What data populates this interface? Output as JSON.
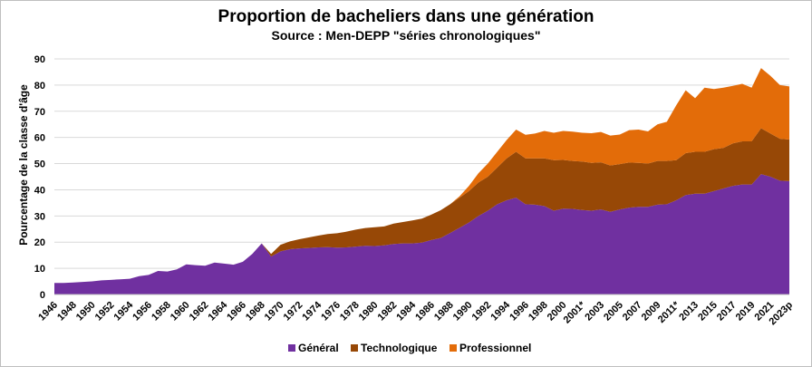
{
  "chart_data": {
    "type": "area",
    "stacked": true,
    "title": "Proportion de bacheliers dans une génération",
    "subtitle": "Source : Men-DEPP \"séries chronologiques\"",
    "ylabel": "Pourcentage de la classe d'âge",
    "ylim": [
      0,
      90
    ],
    "yticks": [
      0,
      10,
      20,
      30,
      40,
      50,
      60,
      70,
      80,
      90
    ],
    "grid": "horizontal",
    "legend_position": "bottom",
    "x_tick_labels": [
      "1946",
      "1948",
      "1950",
      "1952",
      "1954",
      "1956",
      "1958",
      "1960",
      "1962",
      "1964",
      "1966",
      "1968",
      "1970",
      "1972",
      "1974",
      "1976",
      "1978",
      "1980",
      "1982",
      "1984",
      "1986",
      "1988",
      "1990",
      "1992",
      "1994",
      "1996",
      "1998",
      "2000",
      "2001*",
      "2003",
      "2005",
      "2007",
      "2009",
      "2011*",
      "2013",
      "2015",
      "2017",
      "2019",
      "2021",
      "2023p"
    ],
    "x": [
      "1946",
      "1947",
      "1948",
      "1949",
      "1950",
      "1951",
      "1952",
      "1953",
      "1954",
      "1955",
      "1956",
      "1957",
      "1958",
      "1959",
      "1960",
      "1961",
      "1962",
      "1963",
      "1964",
      "1965",
      "1966",
      "1967",
      "1968",
      "1969",
      "1970",
      "1971",
      "1972",
      "1973",
      "1974",
      "1975",
      "1976",
      "1977",
      "1978",
      "1979",
      "1980",
      "1981",
      "1982",
      "1983",
      "1984",
      "1985",
      "1986",
      "1987",
      "1988",
      "1989",
      "1990",
      "1991",
      "1992",
      "1993",
      "1994",
      "1995",
      "1996",
      "1997",
      "1998",
      "1999",
      "2000",
      "2001",
      "2001*",
      "2002",
      "2003",
      "2004",
      "2005",
      "2006",
      "2007",
      "2008",
      "2009",
      "2010",
      "2011*",
      "2012",
      "2013",
      "2014",
      "2015",
      "2016",
      "2017",
      "2018",
      "2019",
      "2020",
      "2021",
      "2022",
      "2023p"
    ],
    "series": [
      {
        "name": "Général",
        "color": "#7030a0",
        "values": [
          4.4,
          4.4,
          4.6,
          4.8,
          5.0,
          5.4,
          5.6,
          5.8,
          6.0,
          7.0,
          7.5,
          9.0,
          8.8,
          9.6,
          11.5,
          11.2,
          11.0,
          12.2,
          11.8,
          11.4,
          12.5,
          15.5,
          19.5,
          14.5,
          16.5,
          17.3,
          17.6,
          17.8,
          18.0,
          18.1,
          17.9,
          18.0,
          18.3,
          18.6,
          18.5,
          18.8,
          19.3,
          19.5,
          19.5,
          19.8,
          20.8,
          21.6,
          23.5,
          25.5,
          27.5,
          30.0,
          32.0,
          34.5,
          36.0,
          37.0,
          34.5,
          34.3,
          33.8,
          32.0,
          32.8,
          32.7,
          32.3,
          32.0,
          32.5,
          31.6,
          32.5,
          33.2,
          33.5,
          33.5,
          34.3,
          34.5,
          36.0,
          38.0,
          38.5,
          38.5,
          39.5,
          40.5,
          41.5,
          42.0,
          42.0,
          46.0,
          45.0,
          43.5,
          43.3
        ]
      },
      {
        "name": "Technologique",
        "color": "#974806",
        "values": [
          0,
          0,
          0,
          0,
          0,
          0,
          0,
          0,
          0,
          0,
          0,
          0,
          0,
          0,
          0,
          0,
          0,
          0,
          0,
          0,
          0,
          0,
          0,
          1.0,
          2.5,
          3.0,
          3.5,
          4.0,
          4.5,
          5.0,
          5.5,
          6.0,
          6.5,
          6.8,
          7.2,
          7.2,
          7.8,
          8.2,
          8.8,
          9.2,
          9.7,
          10.6,
          11.0,
          11.5,
          12.0,
          12.8,
          13.0,
          14.0,
          16.0,
          17.5,
          17.5,
          17.7,
          18.2,
          19.3,
          18.6,
          18.3,
          18.5,
          18.3,
          18.0,
          17.7,
          17.3,
          17.2,
          16.8,
          16.5,
          16.7,
          16.5,
          15.3,
          16.0,
          16.0,
          16.0,
          16.0,
          15.5,
          16.2,
          16.5,
          16.5,
          17.5,
          16.5,
          16.0,
          15.9
        ]
      },
      {
        "name": "Professionnel",
        "color": "#e36c09",
        "values": [
          0,
          0,
          0,
          0,
          0,
          0,
          0,
          0,
          0,
          0,
          0,
          0,
          0,
          0,
          0,
          0,
          0,
          0,
          0,
          0,
          0,
          0,
          0,
          0,
          0,
          0,
          0,
          0,
          0,
          0,
          0,
          0,
          0,
          0,
          0,
          0,
          0,
          0,
          0,
          0,
          0,
          0,
          0,
          0.5,
          2.0,
          3.5,
          5.0,
          6.0,
          7.0,
          8.5,
          9.0,
          9.5,
          10.5,
          10.5,
          11.1,
          11.2,
          11.0,
          11.3,
          11.6,
          11.4,
          11.3,
          12.4,
          12.7,
          12.3,
          14.0,
          15.0,
          21.0,
          24.0,
          20.5,
          24.5,
          23.0,
          23.0,
          22.0,
          22.0,
          20.5,
          23.0,
          22.0,
          20.5,
          20.3
        ]
      }
    ]
  }
}
